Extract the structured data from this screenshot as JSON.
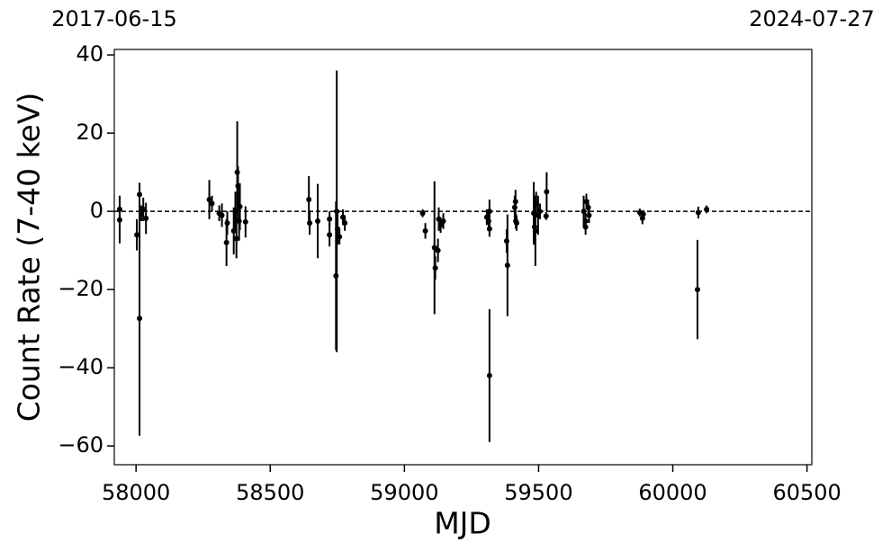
{
  "chart_data": {
    "type": "scatter",
    "xlabel": "MJD",
    "ylabel": "Count Rate (7-40 keV)",
    "xlim": [
      57919,
      60518
    ],
    "ylim": [
      -64.8,
      41.4
    ],
    "xticks": [
      58000,
      58500,
      59000,
      59500,
      60000,
      60500
    ],
    "yticks": [
      {
        "value": -60,
        "label": "−60"
      },
      {
        "value": -40,
        "label": "−40"
      },
      {
        "value": -20,
        "label": "−20"
      },
      0,
      20,
      40
    ],
    "x2ticks": [
      {
        "value": 57919,
        "label": "2017-06-15"
      },
      {
        "value": 60518,
        "label": "2024-07-27"
      }
    ],
    "hline": 0,
    "color": "#000000",
    "x": [
      57939,
      57939,
      58003,
      58013,
      58013,
      58020,
      58027,
      58037,
      58273,
      58283,
      58310,
      58320,
      58340,
      58337,
      58364,
      58370,
      58377,
      58380,
      58374,
      58384,
      58387,
      58408,
      58644,
      58647,
      58677,
      58721,
      58721,
      58745,
      58748,
      58751,
      58758,
      58771,
      58778,
      59068,
      59078,
      59112,
      59115,
      59125,
      59128,
      59135,
      59145,
      59307,
      59314,
      59317,
      59317,
      59317,
      59381,
      59384,
      59411,
      59415,
      59418,
      59414,
      59482,
      59485,
      59488,
      59491,
      59498,
      59505,
      59528,
      59530,
      59668,
      59675,
      59675,
      59678,
      59685,
      59688,
      59877,
      59887,
      59890,
      60092,
      60095,
      60126
    ],
    "values": [
      0.5,
      -2.2,
      -6,
      4.3,
      -27.4,
      -0.5,
      0.5,
      -1.8,
      3,
      2,
      -0.5,
      -1,
      -3,
      -8,
      -5,
      0,
      10,
      6.5,
      -7,
      -2.5,
      1.2,
      -2.7,
      3,
      -3,
      -2.5,
      -2,
      -6,
      -16.5,
      0,
      -4.5,
      -6.5,
      -1.5,
      -3,
      -0.5,
      -5,
      -9.3,
      -14.5,
      -10,
      -2,
      -3.5,
      -2.5,
      -1.5,
      -2.5,
      0,
      -42,
      -4.5,
      -7.6,
      -13.8,
      1,
      -2.5,
      -3,
      2.5,
      -0.5,
      -4,
      -5,
      2,
      -1,
      0,
      -1.2,
      5,
      0,
      -2.5,
      -4,
      2.5,
      1,
      -1,
      -0.3,
      -1.8,
      -0.7,
      -20,
      -0.3,
      0.5
    ],
    "errors": [
      3.5,
      6,
      4,
      3,
      30,
      2,
      3,
      4,
      5,
      2,
      2,
      3,
      3,
      6,
      6,
      5,
      13,
      5,
      5,
      5,
      6,
      4,
      6,
      3,
      9.5,
      2,
      3,
      19,
      36,
      4,
      2,
      2,
      2,
      1,
      2,
      17,
      3,
      3,
      3,
      2,
      2,
      2,
      2,
      3,
      17,
      2,
      3,
      13,
      3,
      2,
      2,
      3,
      8,
      4,
      9,
      3,
      5,
      2,
      1,
      5,
      4,
      2,
      2,
      2,
      2,
      2,
      1,
      1.5,
      1,
      12.7,
      1.5,
      1
    ]
  }
}
